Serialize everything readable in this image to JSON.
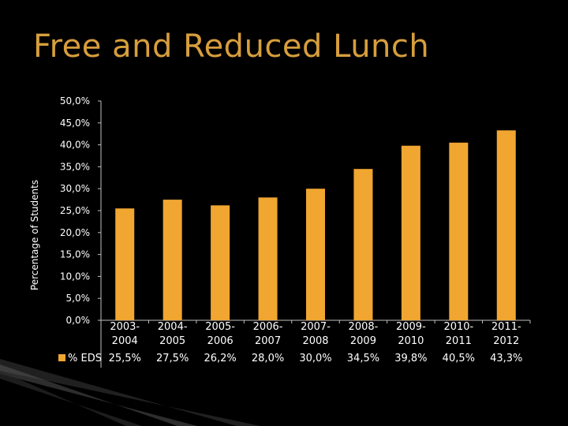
{
  "slide": {
    "title": "Free and Reduced Lunch"
  },
  "colors": {
    "background": "#000000",
    "title": "#d79e3c",
    "bar": "#f0a630",
    "text": "#ffffff",
    "axis": "#bfbfbf"
  },
  "chart_data": {
    "type": "bar",
    "title": "",
    "ylabel": "Percentage of Students",
    "xlabel": "",
    "ylim": [
      0,
      50
    ],
    "ytick_step": 5,
    "ytick_labels": [
      "0,0%",
      "5,0%",
      "10,0%",
      "15,0%",
      "20,0%",
      "25,0%",
      "30,0%",
      "35,0%",
      "40,0%",
      "45,0%",
      "50,0%"
    ],
    "grid": false,
    "legend": "data-table-left",
    "categories": [
      [
        "2003-",
        "2004"
      ],
      [
        "2004-",
        "2005"
      ],
      [
        "2005-",
        "2006"
      ],
      [
        "2006-",
        "2007"
      ],
      [
        "2007-",
        "2008"
      ],
      [
        "2008-",
        "2009"
      ],
      [
        "2009-",
        "2010"
      ],
      [
        "2010-",
        "2011"
      ],
      [
        "2011-",
        "2012"
      ]
    ],
    "series": [
      {
        "name": "% EDS",
        "values": [
          25.5,
          27.5,
          26.2,
          28.0,
          30.0,
          34.5,
          39.8,
          40.5,
          43.3
        ],
        "labels": [
          "25,5%",
          "27,5%",
          "26,2%",
          "28,0%",
          "30,0%",
          "34,5%",
          "39,8%",
          "40,5%",
          "43,3%"
        ]
      }
    ]
  }
}
